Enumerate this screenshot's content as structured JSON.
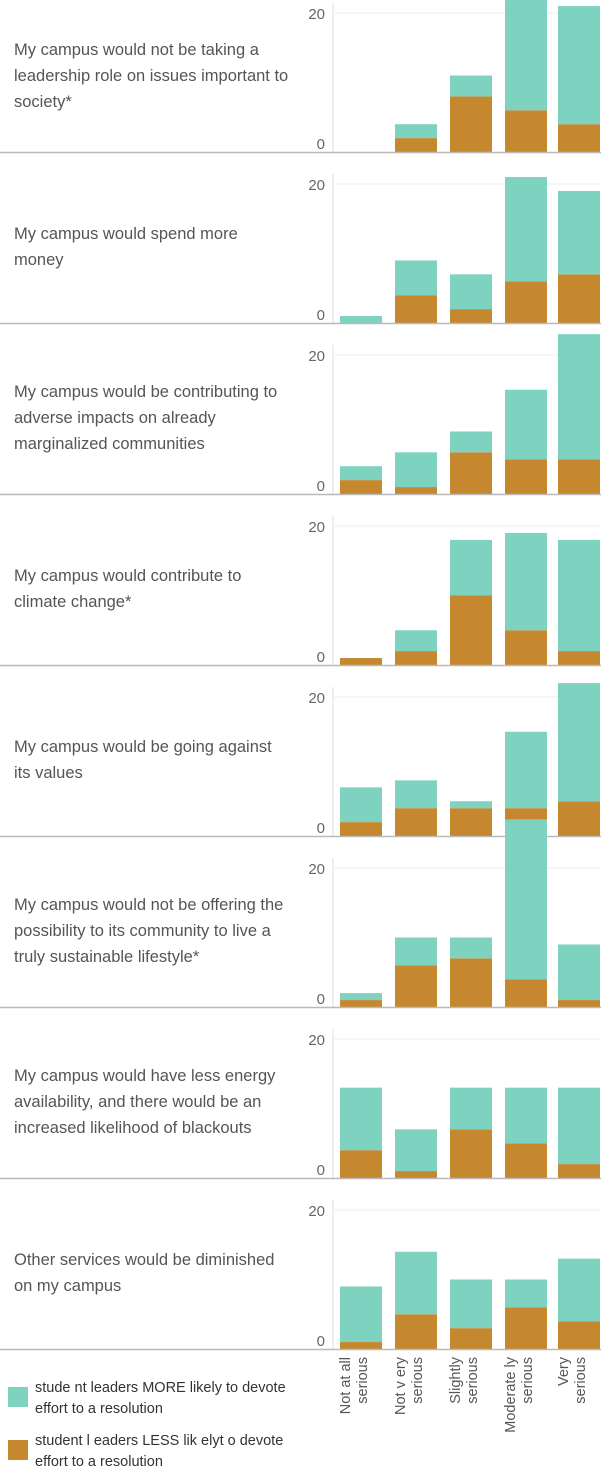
{
  "chart_data": {
    "type": "bar",
    "stacked": true,
    "categories": [
      "Not at all serious",
      "Not very serious",
      "Slightly serious",
      "Moderately serious",
      "Very serious"
    ],
    "category_labels": [
      [
        "Not at all",
        "serious"
      ],
      [
        "Not v ery",
        "serious"
      ],
      [
        "Slightly",
        "serious"
      ],
      [
        "Moderate ly",
        "serious"
      ],
      [
        "Very",
        "serious"
      ]
    ],
    "ylim": [
      0,
      23
    ],
    "yticks": [
      0,
      20
    ],
    "legend": [
      {
        "label": "stude nt leaders MORE  likely to devote effort to a resolution",
        "color": "#7dd3c0"
      },
      {
        "label": "student l eaders LESS lik elyt o devote effort to a resolution",
        "color": "#c5882e"
      }
    ],
    "panels": [
      {
        "title": "My campus would not be taking a leadership role on issues important to society*",
        "less": [
          0,
          2,
          8,
          6,
          4
        ],
        "more": [
          0,
          2,
          3,
          17,
          17
        ]
      },
      {
        "title": "My campus would spend more money",
        "less": [
          0,
          4,
          2,
          6,
          7
        ],
        "more": [
          1,
          5,
          5,
          15,
          12
        ]
      },
      {
        "title": "My campus would be contributing to adverse impacts on already marginalized communities",
        "less": [
          2,
          1,
          6,
          5,
          5
        ],
        "more": [
          2,
          5,
          3,
          10,
          18
        ]
      },
      {
        "title": "My campus would contribute to climate change*",
        "less": [
          1,
          2,
          10,
          5,
          2
        ],
        "more": [
          0,
          3,
          8,
          14,
          16
        ]
      },
      {
        "title": "My campus would be going against its values",
        "less": [
          2,
          4,
          4,
          4,
          5
        ],
        "more": [
          5,
          4,
          1,
          11,
          17
        ]
      },
      {
        "title": "My campus would not be offering the possibility to its community to live a truly sustainable lifestyle*",
        "less": [
          1,
          6,
          7,
          4,
          1
        ],
        "more": [
          1,
          4,
          3,
          23,
          8
        ]
      },
      {
        "title": "My campus would have less energy availability, and there would be an increased likelihood of blackouts",
        "less": [
          4,
          1,
          7,
          5,
          2
        ],
        "more": [
          9,
          6,
          6,
          8,
          11
        ]
      },
      {
        "title": "Other services would be diminished on my campus",
        "less": [
          1,
          5,
          3,
          6,
          4
        ],
        "more": [
          8,
          9,
          7,
          4,
          9
        ]
      }
    ]
  }
}
